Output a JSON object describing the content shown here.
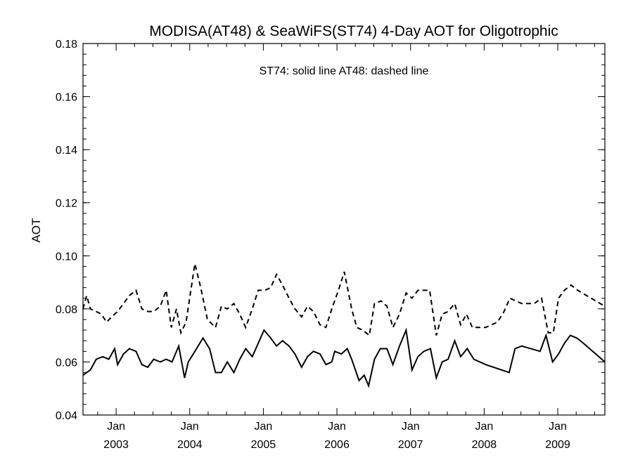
{
  "chart_data": {
    "type": "line",
    "title": "MODISA(AT48) & SeaWiFS(ST74) 4-Day AOT for Oligotrophic",
    "ylabel": "AOT",
    "xlabel": "",
    "annotation": "ST74: solid line   AT48: dashed line",
    "ylim": [
      0.04,
      0.18
    ],
    "yticks": [
      "0.04",
      "0.06",
      "0.08",
      "0.10",
      "0.12",
      "0.14",
      "0.16",
      "0.18"
    ],
    "xlim": [
      2002.55,
      2009.64
    ],
    "xticks": [
      {
        "month": "Jan",
        "year": "2003"
      },
      {
        "month": "Jan",
        "year": "2004"
      },
      {
        "month": "Jan",
        "year": "2005"
      },
      {
        "month": "Jan",
        "year": "2006"
      },
      {
        "month": "Jan",
        "year": "2007"
      },
      {
        "month": "Jan",
        "year": "2008"
      },
      {
        "month": "Jan",
        "year": "2009"
      }
    ],
    "series": [
      {
        "name": "ST74",
        "style": "solid",
        "color": "#000000",
        "x": [
          2002.55,
          2002.65,
          2002.73,
          2002.82,
          2002.9,
          2002.98,
          2003.02,
          2003.1,
          2003.18,
          2003.27,
          2003.35,
          2003.43,
          2003.51,
          2003.6,
          2003.68,
          2003.76,
          2003.85,
          2003.93,
          2003.98,
          2004.07,
          2004.18,
          2004.27,
          2004.35,
          2004.43,
          2004.51,
          2004.6,
          2004.68,
          2004.76,
          2004.85,
          2004.93,
          2005.01,
          2005.1,
          2005.18,
          2005.26,
          2005.35,
          2005.43,
          2005.52,
          2005.6,
          2005.68,
          2005.77,
          2005.85,
          2005.93,
          2005.97,
          2006.06,
          2006.14,
          2006.2,
          2006.3,
          2006.37,
          2006.43,
          2006.51,
          2006.59,
          2006.68,
          2006.76,
          2006.85,
          2006.94,
          2007.02,
          2007.1,
          2007.18,
          2007.27,
          2007.35,
          2007.43,
          2007.51,
          2007.6,
          2007.68,
          2007.77,
          2007.86,
          2007.94,
          2008.02,
          2008.34,
          2008.42,
          2008.51,
          2008.76,
          2008.84,
          2008.93,
          2009.01,
          2009.09,
          2009.17,
          2009.26,
          2009.35,
          2009.64
        ],
        "y": [
          0.055,
          0.057,
          0.061,
          0.062,
          0.061,
          0.065,
          0.059,
          0.063,
          0.065,
          0.064,
          0.059,
          0.058,
          0.061,
          0.06,
          0.061,
          0.06,
          0.066,
          0.054,
          0.06,
          0.064,
          0.069,
          0.065,
          0.056,
          0.056,
          0.06,
          0.056,
          0.061,
          0.065,
          0.062,
          0.067,
          0.072,
          0.069,
          0.066,
          0.068,
          0.066,
          0.063,
          0.058,
          0.062,
          0.064,
          0.063,
          0.059,
          0.06,
          0.064,
          0.063,
          0.065,
          0.061,
          0.053,
          0.055,
          0.051,
          0.061,
          0.065,
          0.065,
          0.059,
          0.066,
          0.072,
          0.057,
          0.062,
          0.064,
          0.065,
          0.054,
          0.06,
          0.061,
          0.068,
          0.062,
          0.065,
          0.061,
          0.06,
          0.059,
          0.056,
          0.065,
          0.066,
          0.064,
          0.07,
          0.06,
          0.063,
          0.067,
          0.07,
          0.069,
          0.067,
          0.06
        ]
      },
      {
        "name": "AT48",
        "style": "dashed",
        "color": "#000000",
        "x": [
          2002.55,
          2002.6,
          2002.65,
          2002.73,
          2002.8,
          2002.87,
          2002.94,
          2003.02,
          2003.1,
          2003.18,
          2003.27,
          2003.35,
          2003.43,
          2003.51,
          2003.6,
          2003.68,
          2003.75,
          2003.82,
          2003.88,
          2003.95,
          2004.07,
          2004.15,
          2004.24,
          2004.35,
          2004.43,
          2004.51,
          2004.6,
          2004.68,
          2004.76,
          2004.85,
          2004.93,
          2005.02,
          2005.1,
          2005.18,
          2005.26,
          2005.35,
          2005.43,
          2005.52,
          2005.6,
          2005.68,
          2005.77,
          2005.85,
          2005.93,
          2006.02,
          2006.1,
          2006.2,
          2006.27,
          2006.35,
          2006.44,
          2006.51,
          2006.6,
          2006.68,
          2006.76,
          2006.85,
          2006.94,
          2007.02,
          2007.1,
          2007.18,
          2007.26,
          2007.35,
          2007.43,
          2007.51,
          2007.6,
          2007.68,
          2007.76,
          2007.84,
          2007.93,
          2008.02,
          2008.18,
          2008.27,
          2008.35,
          2008.43,
          2008.51,
          2008.68,
          2008.78,
          2008.87,
          2008.94,
          2009.01,
          2009.09,
          2009.18,
          2009.27,
          2009.64
        ],
        "y": [
          0.08,
          0.085,
          0.08,
          0.079,
          0.078,
          0.075,
          0.077,
          0.079,
          0.082,
          0.085,
          0.087,
          0.08,
          0.079,
          0.079,
          0.081,
          0.087,
          0.073,
          0.08,
          0.071,
          0.075,
          0.097,
          0.088,
          0.076,
          0.073,
          0.081,
          0.08,
          0.082,
          0.078,
          0.073,
          0.08,
          0.087,
          0.087,
          0.088,
          0.093,
          0.089,
          0.084,
          0.08,
          0.077,
          0.081,
          0.079,
          0.074,
          0.073,
          0.08,
          0.087,
          0.094,
          0.08,
          0.073,
          0.072,
          0.07,
          0.082,
          0.083,
          0.081,
          0.073,
          0.078,
          0.086,
          0.084,
          0.087,
          0.087,
          0.087,
          0.07,
          0.078,
          0.079,
          0.082,
          0.074,
          0.078,
          0.073,
          0.073,
          0.073,
          0.075,
          0.079,
          0.084,
          0.083,
          0.082,
          0.082,
          0.084,
          0.071,
          0.071,
          0.084,
          0.087,
          0.089,
          0.087,
          0.081
        ]
      }
    ]
  }
}
